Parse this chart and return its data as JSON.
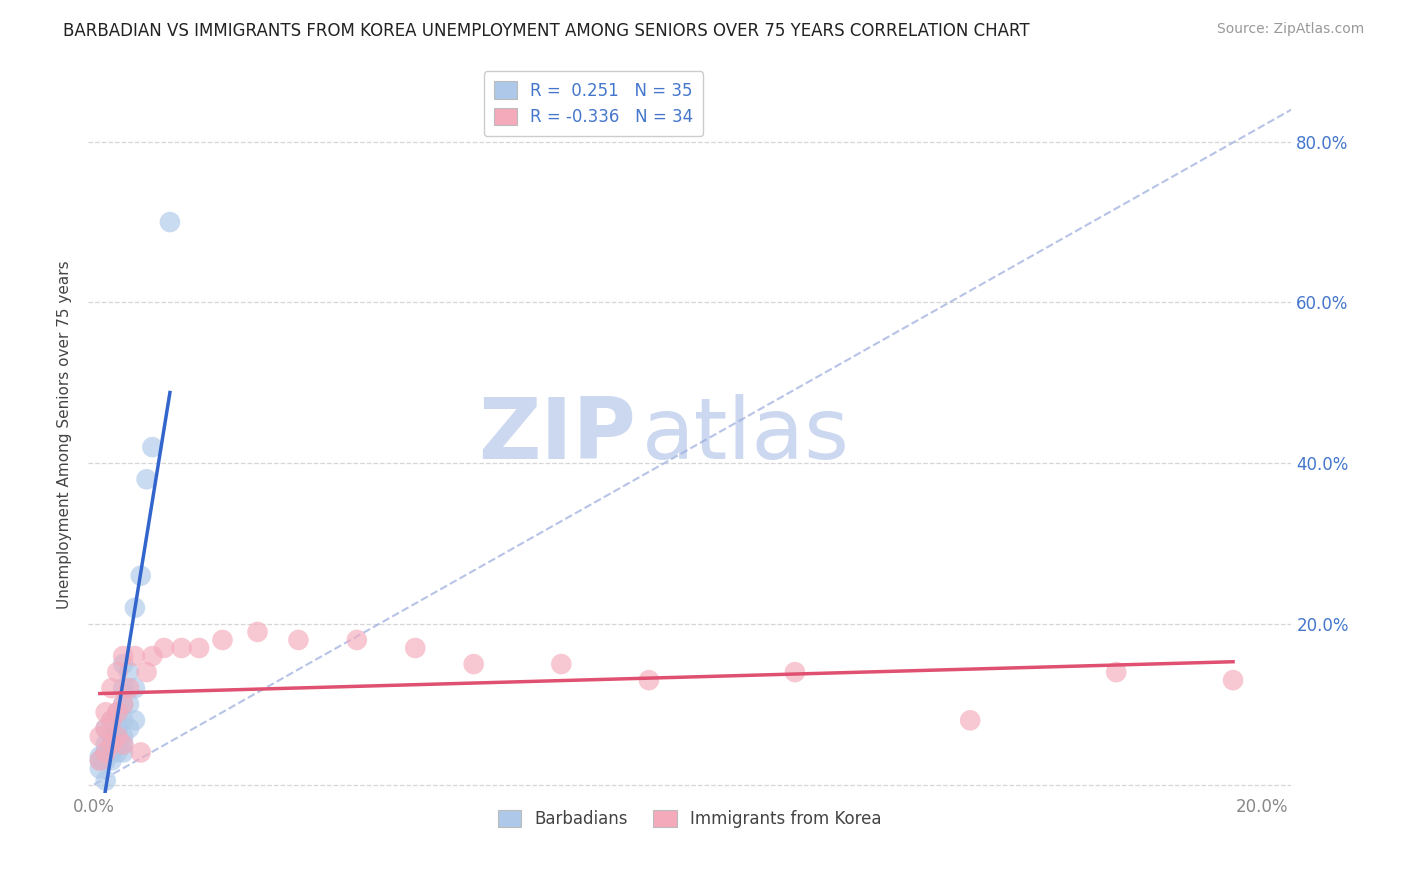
{
  "title": "BARBADIAN VS IMMIGRANTS FROM KOREA UNEMPLOYMENT AMONG SENIORS OVER 75 YEARS CORRELATION CHART",
  "source": "Source: ZipAtlas.com",
  "ylabel": "Unemployment Among Seniors over 75 years",
  "xlim": [
    -0.001,
    0.205
  ],
  "ylim": [
    -0.01,
    0.88
  ],
  "x_ticks": [
    0.0,
    0.05,
    0.1,
    0.15,
    0.2
  ],
  "y_ticks": [
    0.0,
    0.2,
    0.4,
    0.6,
    0.8
  ],
  "barbadian_R": 0.251,
  "barbadian_N": 35,
  "korea_R": -0.336,
  "korea_N": 34,
  "barbadian_color": "#adc8e8",
  "korea_color": "#f4aabb",
  "barbadian_line_color": "#3366cc",
  "korea_line_color": "#e05070",
  "diag_color": "#99aadd",
  "background_color": "#ffffff",
  "grid_color": "#cccccc",
  "watermark_zip": "ZIP",
  "watermark_atlas": "atlas",
  "watermark_color": "#ccd8f0",
  "tick_color_blue": "#4477cc",
  "tick_color_gray": "#888888",
  "barbadian_x": [
    0.001,
    0.001,
    0.001,
    0.002,
    0.002,
    0.002,
    0.002,
    0.003,
    0.003,
    0.003,
    0.003,
    0.003,
    0.004,
    0.004,
    0.004,
    0.004,
    0.004,
    0.005,
    0.005,
    0.005,
    0.005,
    0.005,
    0.005,
    0.005,
    0.006,
    0.006,
    0.006,
    0.007,
    0.007,
    0.007,
    0.008,
    0.009,
    0.01,
    0.013,
    0.002
  ],
  "barbadian_y": [
    0.02,
    0.03,
    0.035,
    0.03,
    0.04,
    0.05,
    0.07,
    0.03,
    0.04,
    0.05,
    0.06,
    0.08,
    0.04,
    0.05,
    0.06,
    0.07,
    0.09,
    0.04,
    0.05,
    0.06,
    0.08,
    0.1,
    0.12,
    0.15,
    0.07,
    0.1,
    0.14,
    0.08,
    0.12,
    0.22,
    0.26,
    0.38,
    0.42,
    0.7,
    0.005
  ],
  "korea_x": [
    0.001,
    0.001,
    0.002,
    0.002,
    0.002,
    0.003,
    0.003,
    0.003,
    0.004,
    0.004,
    0.004,
    0.005,
    0.005,
    0.005,
    0.006,
    0.007,
    0.008,
    0.009,
    0.01,
    0.012,
    0.015,
    0.018,
    0.022,
    0.028,
    0.035,
    0.045,
    0.055,
    0.065,
    0.08,
    0.095,
    0.12,
    0.15,
    0.175,
    0.195
  ],
  "korea_y": [
    0.03,
    0.06,
    0.04,
    0.07,
    0.09,
    0.05,
    0.08,
    0.12,
    0.06,
    0.09,
    0.14,
    0.05,
    0.1,
    0.16,
    0.12,
    0.16,
    0.04,
    0.14,
    0.16,
    0.17,
    0.17,
    0.17,
    0.18,
    0.19,
    0.18,
    0.18,
    0.17,
    0.15,
    0.15,
    0.13,
    0.14,
    0.08,
    0.14,
    0.13
  ]
}
